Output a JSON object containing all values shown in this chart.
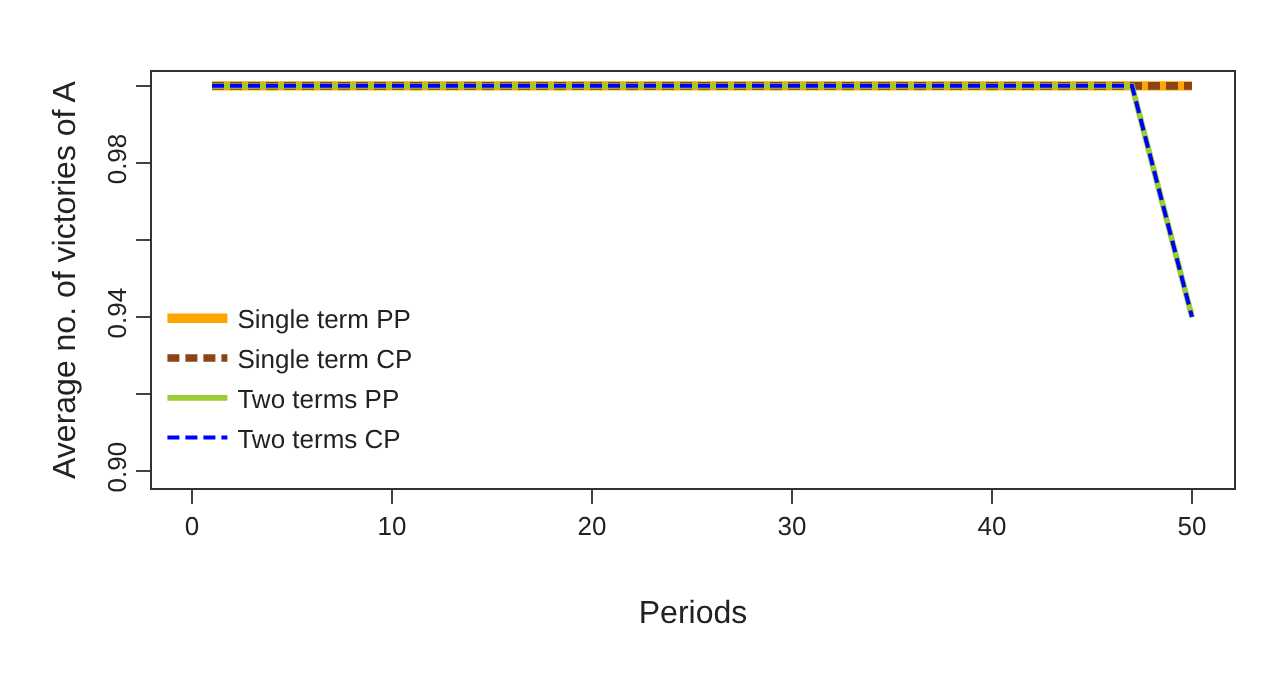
{
  "chart_data": {
    "type": "line",
    "xlabel": "Periods",
    "ylabel": "Average no. of victories of A",
    "xlim": [
      -2,
      52.1
    ],
    "xticks": [
      0,
      10,
      20,
      30,
      40,
      50
    ],
    "ylim": [
      0.8956,
      1.0036
    ],
    "yticks": [
      {
        "value": 0.9,
        "label": "0.90"
      },
      {
        "value": 0.92,
        "label": null
      },
      {
        "value": 0.94,
        "label": "0.94"
      },
      {
        "value": 0.96,
        "label": null
      },
      {
        "value": 0.98,
        "label": "0.98"
      },
      {
        "value": 1.0,
        "label": null
      }
    ],
    "grid": false,
    "legend": "left",
    "marker": "none",
    "series": [
      {
        "name": "Single term PP",
        "color": "#ffa500",
        "x": [
          1,
          50
        ],
        "values": [
          1,
          1
        ],
        "line_style": "solid"
      },
      {
        "name": "Single term CP",
        "color": "#8b4513",
        "x": [
          1,
          50
        ],
        "values": [
          1,
          1
        ],
        "line_style": "dashed"
      },
      {
        "name": "Two terms PP",
        "color": "#9acd32",
        "x": [
          1,
          47,
          50
        ],
        "values": [
          1,
          1,
          0.94
        ],
        "line_style": "solid"
      },
      {
        "name": "Two terms CP",
        "color": "#0000ff",
        "x": [
          1,
          47,
          50
        ],
        "values": [
          1,
          1,
          0.94
        ],
        "line_style": "dashed"
      }
    ]
  }
}
